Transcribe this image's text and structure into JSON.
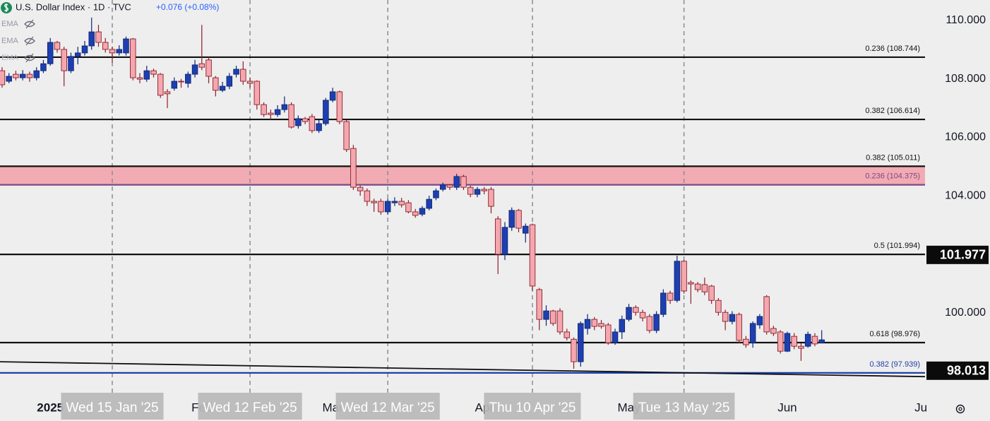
{
  "chart_data": {
    "type": "candlestick",
    "title": "U.S. Dollar Index · 1D · TVC",
    "change": "+0.076 (+0.08%)",
    "indicators": [
      "EMA",
      "EMA",
      "EMA"
    ],
    "up_color": "#1e3fb0",
    "down_color": "#f4a7ae",
    "open": [
      108.28,
      107.92,
      108.16,
      108.04,
      108.16,
      108.04,
      108.28,
      108.52,
      109.25,
      109.01,
      108.28,
      108.77,
      108.89,
      109.13,
      109.61,
      109.25,
      109.01,
      108.89,
      108.89,
      109.37,
      108.04,
      107.99,
      108.28,
      108.16,
      107.56,
      107.68,
      107.92,
      107.85,
      108.16,
      108.52,
      108.65,
      108.04,
      107.61,
      107.75,
      108.16,
      108.33,
      107.92,
      107.92,
      107.12,
      106.83,
      106.78,
      106.95,
      107.12,
      106.4,
      106.64,
      106.71,
      106.23,
      106.47,
      107.27,
      107.56,
      106.54,
      105.62,
      104.29,
      104.17,
      103.81,
      103.81,
      103.45,
      103.76,
      103.81,
      103.76,
      103.45,
      103.37,
      103.57,
      103.93,
      104.22,
      104.37,
      104.29,
      104.66,
      104.29,
      104.05,
      104.22,
      104.22,
      103.21,
      102.0,
      102.92,
      103.5,
      102.72,
      103.01,
      100.79,
      99.77,
      100.06,
      100.06,
      99.34,
      99.09,
      98.32,
      99.46,
      99.77,
      99.63,
      99.58,
      98.97,
      99.34,
      99.77,
      100.18,
      100.01,
      99.87,
      99.39,
      99.94,
      100.67,
      100.42,
      101.76,
      101.03,
      100.98,
      100.96,
      100.91,
      100.42,
      100.01,
      99.7,
      99.94,
      99.09,
      98.97,
      99.58,
      100.55,
      99.46,
      99.34,
      98.68,
      99.19,
      98.85,
      98.85,
      99.19,
      98.97
    ],
    "high": [
      108.4,
      108.2,
      108.28,
      108.3,
      108.25,
      108.4,
      108.65,
      109.4,
      109.3,
      109.1,
      108.9,
      109.1,
      109.3,
      110.1,
      109.85,
      109.4,
      109.1,
      109.15,
      109.45,
      109.4,
      108.2,
      108.45,
      108.35,
      108.2,
      107.65,
      108.05,
      108.0,
      108.25,
      108.65,
      109.85,
      108.75,
      108.1,
      107.9,
      108.2,
      108.45,
      108.6,
      108.05,
      107.95,
      107.2,
      106.95,
      107.1,
      107.4,
      107.2,
      106.75,
      106.7,
      106.8,
      106.6,
      107.35,
      107.7,
      107.6,
      106.6,
      105.74,
      104.35,
      104.25,
      103.9,
      103.9,
      103.9,
      103.95,
      103.93,
      103.85,
      103.55,
      103.65,
      104.0,
      104.25,
      104.45,
      104.4,
      104.75,
      104.72,
      104.35,
      104.3,
      104.3,
      104.3,
      103.3,
      103.1,
      103.6,
      103.55,
      103.05,
      103.05,
      100.85,
      100.25,
      100.1,
      100.15,
      99.45,
      99.15,
      99.7,
      99.95,
      99.85,
      99.75,
      99.65,
      99.45,
      99.9,
      100.3,
      100.25,
      100.1,
      99.95,
      100.05,
      100.8,
      100.75,
      101.95,
      101.8,
      101.1,
      101.05,
      101.2,
      100.95,
      100.5,
      100.1,
      100.05,
      100.0,
      99.2,
      99.7,
      99.95,
      100.6,
      99.55,
      99.4,
      99.35,
      99.3,
      98.95,
      99.35,
      99.3,
      99.4
    ],
    "low": [
      107.7,
      107.85,
      107.95,
      107.95,
      107.9,
      107.95,
      108.2,
      108.45,
      108.9,
      107.75,
      108.2,
      108.5,
      108.8,
      109.0,
      109.1,
      108.9,
      108.55,
      108.8,
      108.8,
      107.95,
      107.85,
      107.9,
      108.05,
      107.35,
      107.0,
      107.6,
      107.7,
      107.7,
      108.05,
      108.3,
      107.85,
      107.4,
      107.55,
      107.65,
      108.05,
      107.8,
      107.7,
      106.95,
      106.7,
      106.6,
      106.7,
      106.85,
      106.3,
      106.3,
      106.45,
      106.15,
      106.15,
      106.4,
      107.2,
      106.45,
      105.5,
      104.2,
      104.0,
      103.65,
      103.45,
      103.35,
      103.35,
      103.65,
      103.6,
      103.4,
      103.25,
      103.3,
      103.5,
      103.85,
      104.15,
      104.2,
      104.2,
      104.2,
      103.95,
      103.95,
      104.05,
      103.4,
      101.32,
      101.8,
      102.8,
      102.75,
      102.4,
      100.75,
      99.4,
      99.55,
      99.55,
      99.25,
      99.05,
      98.08,
      98.15,
      99.25,
      99.4,
      99.45,
      98.9,
      98.9,
      99.1,
      99.7,
      99.9,
      99.7,
      99.3,
      99.3,
      99.85,
      100.3,
      100.35,
      100.65,
      100.3,
      100.7,
      100.6,
      100.3,
      99.9,
      99.4,
      99.6,
      98.95,
      98.8,
      98.8,
      99.45,
      99.25,
      99.2,
      98.6,
      98.65,
      98.75,
      98.35,
      98.8,
      98.85,
      98.95
    ],
    "close": [
      107.8,
      108.09,
      108.04,
      108.16,
      108.04,
      108.28,
      108.52,
      109.25,
      109.01,
      108.28,
      108.77,
      108.89,
      109.13,
      109.61,
      109.25,
      109.01,
      108.89,
      109.01,
      109.37,
      108.04,
      107.99,
      108.28,
      108.16,
      107.44,
      107.49,
      107.92,
      107.9,
      108.16,
      108.48,
      108.4,
      108.09,
      107.61,
      107.75,
      108.09,
      108.33,
      107.92,
      107.85,
      107.12,
      106.78,
      106.78,
      106.95,
      107.12,
      106.35,
      106.64,
      106.54,
      106.23,
      106.47,
      107.27,
      107.56,
      106.54,
      105.58,
      104.29,
      104.17,
      103.81,
      103.76,
      103.45,
      103.81,
      103.81,
      103.69,
      103.45,
      103.33,
      103.57,
      103.88,
      104.17,
      104.37,
      104.29,
      104.66,
      104.29,
      104.05,
      104.22,
      104.17,
      103.64,
      102.0,
      102.92,
      103.5,
      102.89,
      102.96,
      100.91,
      99.77,
      100.06,
      99.63,
      99.34,
      99.14,
      98.32,
      99.63,
      99.77,
      99.53,
      99.53,
      98.97,
      99.34,
      99.77,
      100.18,
      100.01,
      99.82,
      99.39,
      99.94,
      100.67,
      100.42,
      101.76,
      100.74,
      100.98,
      100.79,
      100.71,
      100.42,
      100.01,
      99.7,
      99.94,
      99.05,
      98.9,
      99.63,
      99.87,
      99.34,
      99.29,
      98.68,
      99.29,
      98.85,
      98.78,
      99.26,
      98.93,
      99.07
    ],
    "xlim": [
      -0.3,
      134
    ],
    "ylim": [
      97.162,
      110.701
    ],
    "yticks": [
      {
        "value": 110,
        "label": "110.000"
      },
      {
        "value": 108,
        "label": "108.000"
      },
      {
        "value": 106,
        "label": "106.000"
      },
      {
        "value": 104,
        "label": "104.000"
      },
      {
        "value": 100,
        "label": "100.000"
      }
    ],
    "xticks": [
      {
        "value": 7,
        "label": "2025"
      },
      {
        "value": 29,
        "label": "Feb"
      },
      {
        "value": 48,
        "label": "Mar"
      },
      {
        "value": 70,
        "label": "Apr"
      },
      {
        "value": 91,
        "label": "May"
      },
      {
        "value": 114,
        "label": "Jun"
      },
      {
        "value": 133.4,
        "label": "Ju"
      }
    ],
    "crosshairs": [
      {
        "value": 16,
        "label": "Wed 15 Jan '25"
      },
      {
        "value": 36,
        "label": "Wed 12 Feb '25"
      },
      {
        "value": 56,
        "label": "Wed 12 Mar '25"
      },
      {
        "value": 77,
        "label": "Thu 10 Apr '25"
      },
      {
        "value": 99,
        "label": "Tue 13 May '25"
      }
    ],
    "levels": [
      {
        "value": 108.744,
        "label": "0.236 (108.744)",
        "color": "#111111"
      },
      {
        "value": 106.614,
        "label": "0.382 (106.614)",
        "color": "#111111"
      },
      {
        "value": 105.011,
        "label": "0.382 (105.011)",
        "color": "#111111"
      },
      {
        "value": 104.375,
        "label": "0.236 (104.375)",
        "color": "#7a4a86"
      },
      {
        "value": 101.994,
        "label": "0.5 (101.994)",
        "color": "#111111"
      },
      {
        "value": 98.976,
        "label": "0.618 (98.976)",
        "color": "#111111"
      },
      {
        "value": 97.939,
        "label": "0.382 (97.939)",
        "color": "#1f3fa8"
      }
    ],
    "zone": {
      "from": 104.375,
      "to": 105.011,
      "color": "#f2abb2"
    },
    "trendline": {
      "x": [
        -0.3,
        134
      ],
      "y": [
        98.32,
        97.81
      ]
    },
    "price_tags": [
      101.977,
      98.013
    ]
  }
}
